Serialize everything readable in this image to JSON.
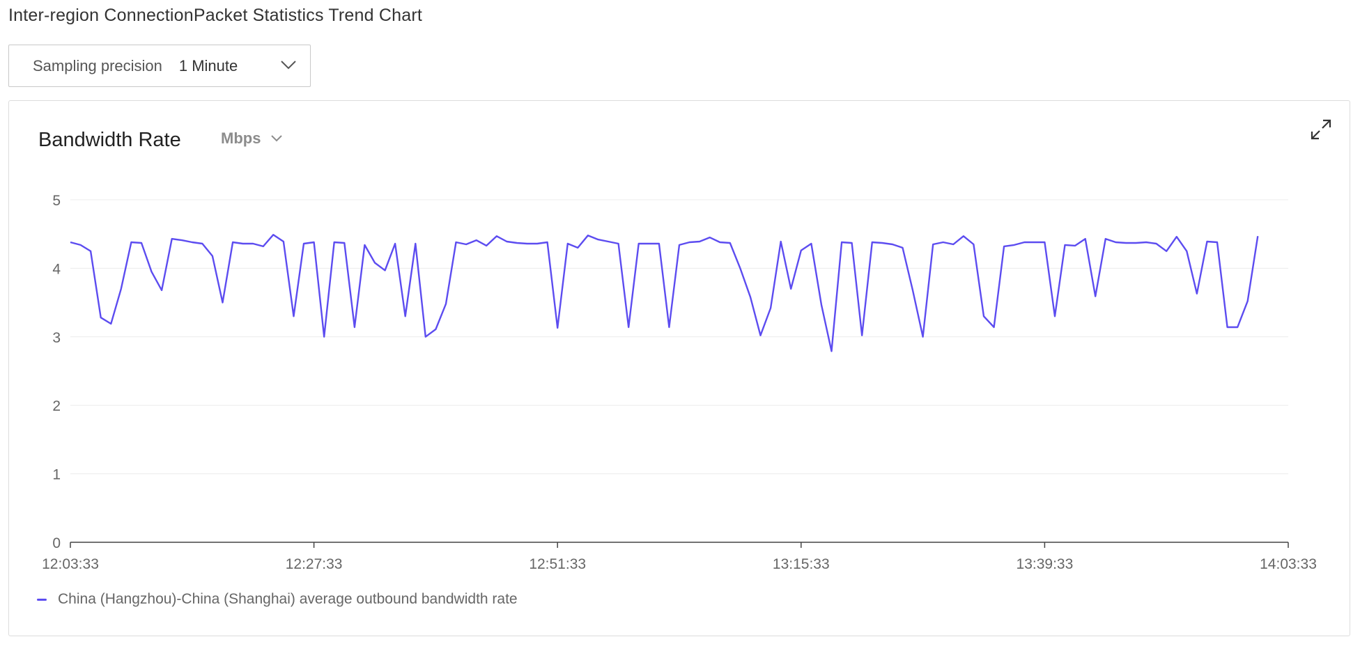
{
  "page": {
    "title": "Inter-region ConnectionPacket Statistics Trend Chart"
  },
  "precision": {
    "label": "Sampling precision",
    "value": "1 Minute",
    "icon": "chevron-down-icon"
  },
  "card": {
    "title": "Bandwidth Rate",
    "unit": "Mbps",
    "unit_icon": "chevron-down-icon",
    "expand_icon": "expand-icon"
  },
  "colors": {
    "series": "#5c4cf0",
    "grid": "#ececec",
    "axis": "#444444",
    "tick_text": "#666666"
  },
  "chart_data": {
    "type": "line",
    "title": "",
    "xlabel": "",
    "ylabel": "",
    "ylim": [
      0,
      5
    ],
    "y_ticks": [
      "0",
      "1",
      "2",
      "3",
      "4",
      "5"
    ],
    "x_ticks": [
      "12:03:33",
      "12:27:33",
      "12:51:33",
      "13:15:33",
      "13:39:33",
      "14:03:33"
    ],
    "x_range_minutes": [
      0,
      120
    ],
    "grid": "horizontal",
    "legend_position": "bottom-left",
    "series": [
      {
        "name": "China (Hangzhou)-China (Shanghai) average outbound bandwidth rate",
        "start": "12:03:33",
        "interval_minutes": 1,
        "values": [
          4.38,
          4.34,
          4.25,
          3.28,
          3.19,
          3.7,
          4.38,
          4.37,
          3.95,
          3.68,
          4.43,
          4.41,
          4.38,
          4.36,
          4.18,
          3.5,
          4.38,
          4.36,
          4.36,
          4.32,
          4.49,
          4.39,
          3.3,
          4.36,
          4.38,
          3.0,
          4.38,
          4.37,
          3.14,
          4.34,
          4.08,
          3.97,
          4.36,
          3.3,
          4.36,
          3.0,
          3.11,
          3.48,
          4.38,
          4.35,
          4.41,
          4.33,
          4.47,
          4.39,
          4.37,
          4.36,
          4.36,
          4.38,
          3.13,
          4.36,
          4.3,
          4.48,
          4.42,
          4.39,
          4.36,
          3.14,
          4.36,
          4.36,
          4.36,
          3.14,
          4.34,
          4.38,
          4.39,
          4.45,
          4.38,
          4.37,
          4.0,
          3.58,
          3.02,
          3.42,
          4.39,
          3.7,
          4.26,
          4.36,
          3.47,
          2.79,
          4.38,
          4.37,
          3.02,
          4.38,
          4.37,
          4.35,
          4.3,
          3.68,
          3.0,
          4.35,
          4.38,
          4.35,
          4.47,
          4.35,
          3.3,
          3.14,
          4.32,
          4.34,
          4.38,
          4.38,
          4.38,
          3.3,
          4.34,
          4.33,
          4.43,
          3.59,
          4.43,
          4.38,
          4.37,
          4.37,
          4.38,
          4.36,
          4.25,
          4.46,
          4.25,
          3.63,
          4.39,
          4.38,
          3.14,
          3.14,
          3.52,
          4.47
        ]
      }
    ]
  }
}
